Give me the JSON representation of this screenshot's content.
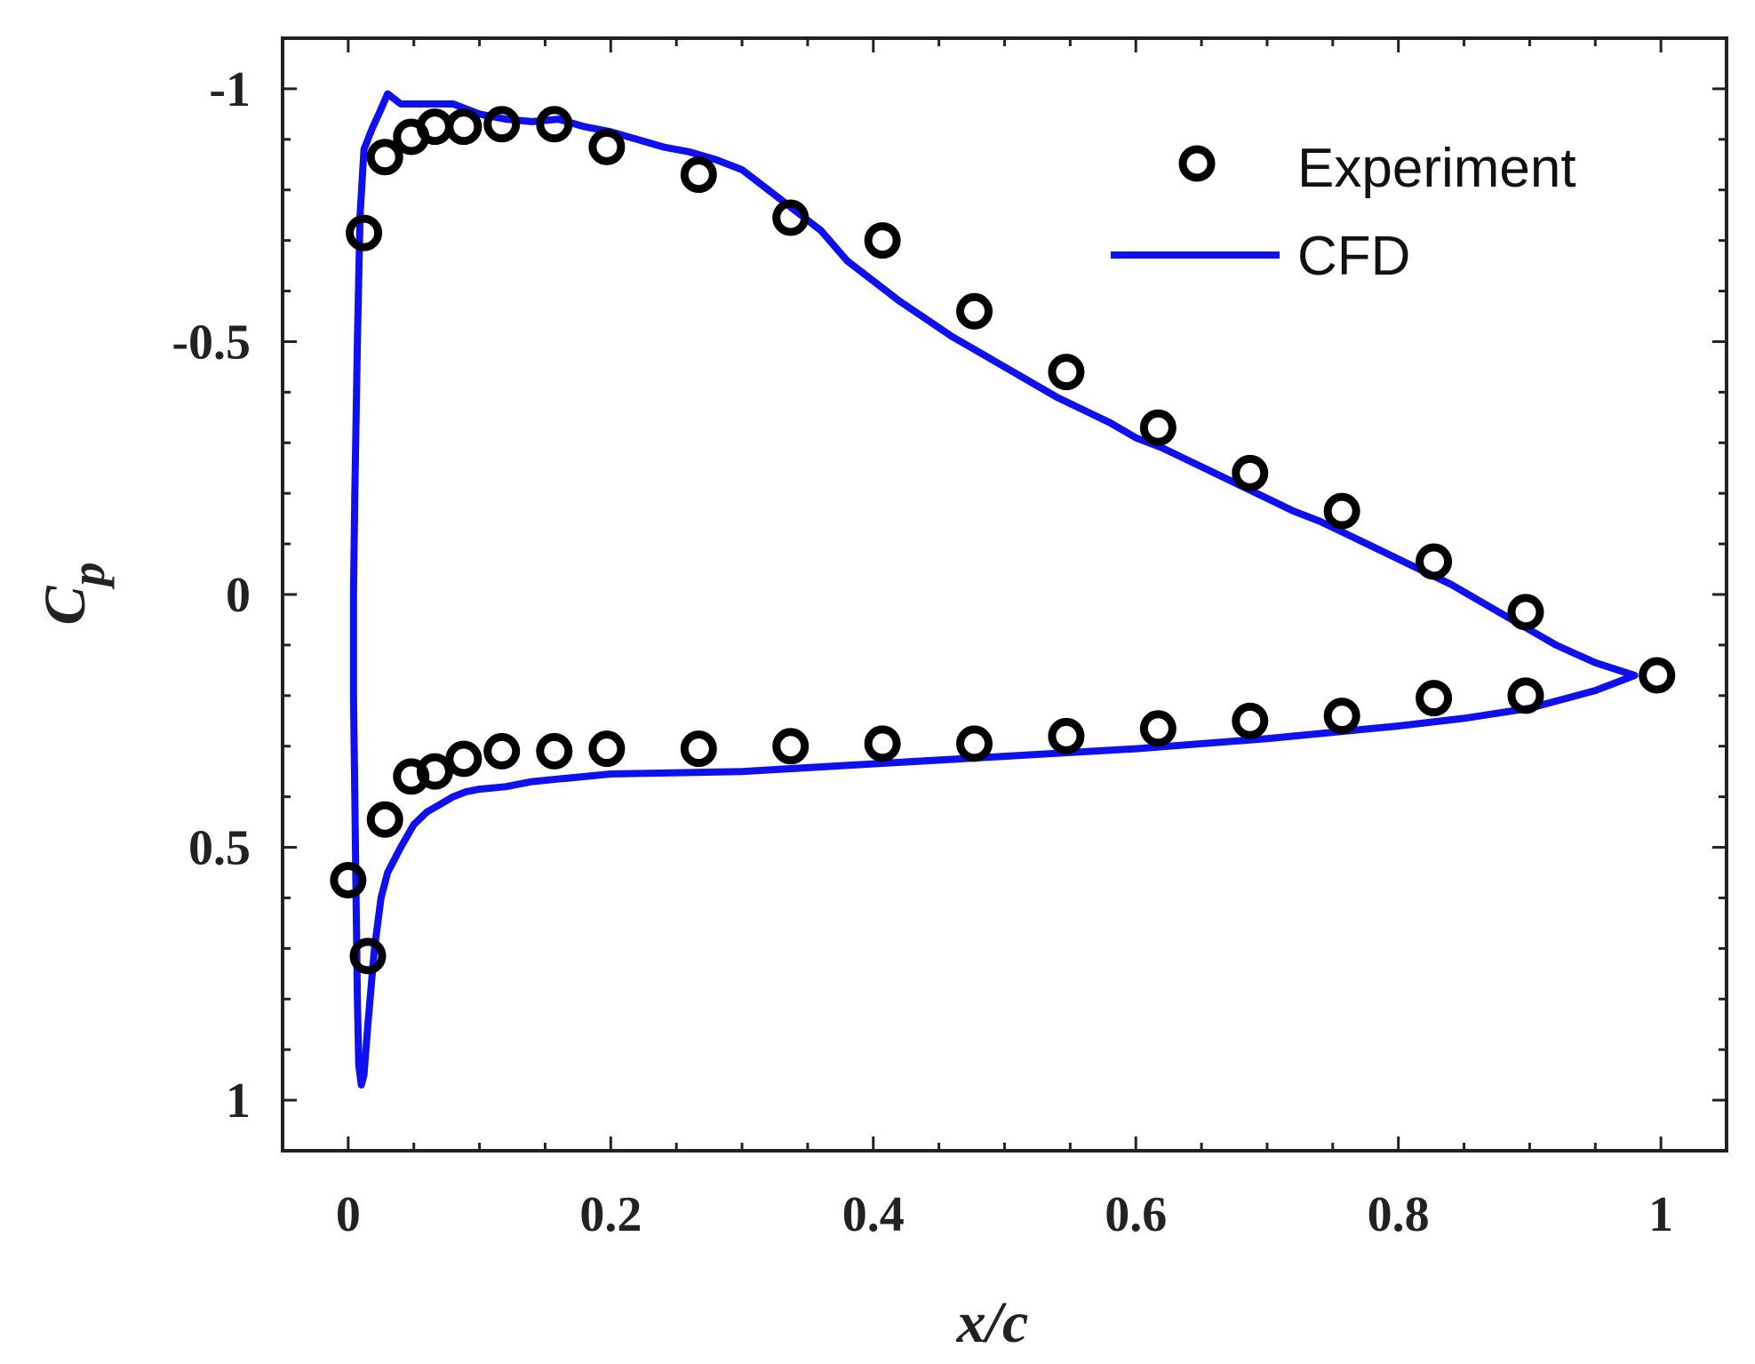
{
  "chart_data": {
    "type": "scatter+line",
    "title": "",
    "xlabel": "x/c",
    "ylabel_main": "C",
    "ylabel_sub": "p",
    "xlim": [
      -0.05,
      1.05
    ],
    "ylim": [
      -1.1,
      1.1
    ],
    "y_inverted": true,
    "xticks": [
      0,
      0.2,
      0.4,
      0.6,
      0.8,
      1
    ],
    "xtick_labels": [
      "0",
      "0.2",
      "0.4",
      "0.6",
      "0.8",
      "1"
    ],
    "yticks": [
      -1,
      -0.5,
      0,
      0.5,
      1
    ],
    "ytick_labels": [
      "-1",
      "-0.5",
      "0",
      "0.5",
      "1"
    ],
    "grid": false,
    "legend_position": "top-right",
    "colors": {
      "cfd": "#1010ee",
      "experiment": "#000000",
      "axes": "#222222"
    },
    "series": [
      {
        "name": "Experiment",
        "style": "open-circle-markers",
        "points": [
          [
            0.0,
            0.565
          ],
          [
            0.012,
            -0.715
          ],
          [
            0.015,
            0.715
          ],
          [
            0.028,
            -0.865
          ],
          [
            0.028,
            0.445
          ],
          [
            0.048,
            -0.905
          ],
          [
            0.048,
            0.36
          ],
          [
            0.066,
            -0.925
          ],
          [
            0.066,
            0.35
          ],
          [
            0.088,
            -0.925
          ],
          [
            0.088,
            0.325
          ],
          [
            0.117,
            -0.93
          ],
          [
            0.117,
            0.31
          ],
          [
            0.157,
            -0.93
          ],
          [
            0.157,
            0.31
          ],
          [
            0.197,
            -0.885
          ],
          [
            0.197,
            0.305
          ],
          [
            0.267,
            -0.83
          ],
          [
            0.267,
            0.305
          ],
          [
            0.337,
            -0.745
          ],
          [
            0.337,
            0.3
          ],
          [
            0.407,
            -0.7
          ],
          [
            0.407,
            0.295
          ],
          [
            0.477,
            -0.56
          ],
          [
            0.477,
            0.295
          ],
          [
            0.547,
            -0.44
          ],
          [
            0.547,
            0.28
          ],
          [
            0.617,
            -0.33
          ],
          [
            0.617,
            0.265
          ],
          [
            0.687,
            -0.24
          ],
          [
            0.687,
            0.25
          ],
          [
            0.757,
            -0.165
          ],
          [
            0.757,
            0.24
          ],
          [
            0.827,
            -0.065
          ],
          [
            0.827,
            0.205
          ],
          [
            0.897,
            0.035
          ],
          [
            0.897,
            0.2
          ],
          [
            0.997,
            0.16
          ]
        ]
      },
      {
        "name": "CFD",
        "style": "solid-line",
        "points": [
          [
            0.98,
            0.16
          ],
          [
            0.95,
            0.135
          ],
          [
            0.92,
            0.1
          ],
          [
            0.9,
            0.07
          ],
          [
            0.88,
            0.04
          ],
          [
            0.86,
            0.01
          ],
          [
            0.84,
            -0.02
          ],
          [
            0.82,
            -0.045
          ],
          [
            0.8,
            -0.07
          ],
          [
            0.78,
            -0.095
          ],
          [
            0.76,
            -0.12
          ],
          [
            0.74,
            -0.145
          ],
          [
            0.72,
            -0.165
          ],
          [
            0.7,
            -0.19
          ],
          [
            0.68,
            -0.215
          ],
          [
            0.66,
            -0.24
          ],
          [
            0.64,
            -0.265
          ],
          [
            0.62,
            -0.29
          ],
          [
            0.6,
            -0.31
          ],
          [
            0.58,
            -0.34
          ],
          [
            0.56,
            -0.365
          ],
          [
            0.54,
            -0.39
          ],
          [
            0.52,
            -0.42
          ],
          [
            0.5,
            -0.45
          ],
          [
            0.48,
            -0.48
          ],
          [
            0.46,
            -0.51
          ],
          [
            0.44,
            -0.545
          ],
          [
            0.42,
            -0.58
          ],
          [
            0.4,
            -0.62
          ],
          [
            0.38,
            -0.66
          ],
          [
            0.36,
            -0.72
          ],
          [
            0.34,
            -0.76
          ],
          [
            0.32,
            -0.8
          ],
          [
            0.3,
            -0.84
          ],
          [
            0.28,
            -0.86
          ],
          [
            0.26,
            -0.875
          ],
          [
            0.24,
            -0.885
          ],
          [
            0.22,
            -0.9
          ],
          [
            0.2,
            -0.915
          ],
          [
            0.18,
            -0.925
          ],
          [
            0.16,
            -0.94
          ],
          [
            0.14,
            -0.935
          ],
          [
            0.12,
            -0.94
          ],
          [
            0.1,
            -0.95
          ],
          [
            0.08,
            -0.97
          ],
          [
            0.06,
            -0.97
          ],
          [
            0.04,
            -0.97
          ],
          [
            0.03,
            -0.99
          ],
          [
            0.025,
            -0.96
          ],
          [
            0.018,
            -0.92
          ],
          [
            0.012,
            -0.88
          ],
          [
            0.009,
            -0.75
          ],
          [
            0.007,
            -0.5
          ],
          [
            0.005,
            -0.2
          ],
          [
            0.004,
            0.0
          ],
          [
            0.004,
            0.2
          ],
          [
            0.005,
            0.4
          ],
          [
            0.006,
            0.6
          ],
          [
            0.007,
            0.8
          ],
          [
            0.008,
            0.93
          ],
          [
            0.01,
            0.97
          ],
          [
            0.012,
            0.95
          ],
          [
            0.015,
            0.85
          ],
          [
            0.02,
            0.7
          ],
          [
            0.025,
            0.6
          ],
          [
            0.03,
            0.55
          ],
          [
            0.04,
            0.5
          ],
          [
            0.05,
            0.455
          ],
          [
            0.06,
            0.43
          ],
          [
            0.07,
            0.415
          ],
          [
            0.08,
            0.4
          ],
          [
            0.09,
            0.39
          ],
          [
            0.1,
            0.385
          ],
          [
            0.12,
            0.38
          ],
          [
            0.14,
            0.37
          ],
          [
            0.16,
            0.365
          ],
          [
            0.2,
            0.355
          ],
          [
            0.3,
            0.35
          ],
          [
            0.4,
            0.335
          ],
          [
            0.5,
            0.32
          ],
          [
            0.6,
            0.305
          ],
          [
            0.7,
            0.285
          ],
          [
            0.8,
            0.26
          ],
          [
            0.85,
            0.245
          ],
          [
            0.9,
            0.225
          ],
          [
            0.95,
            0.19
          ],
          [
            0.98,
            0.16
          ]
        ]
      }
    ]
  }
}
